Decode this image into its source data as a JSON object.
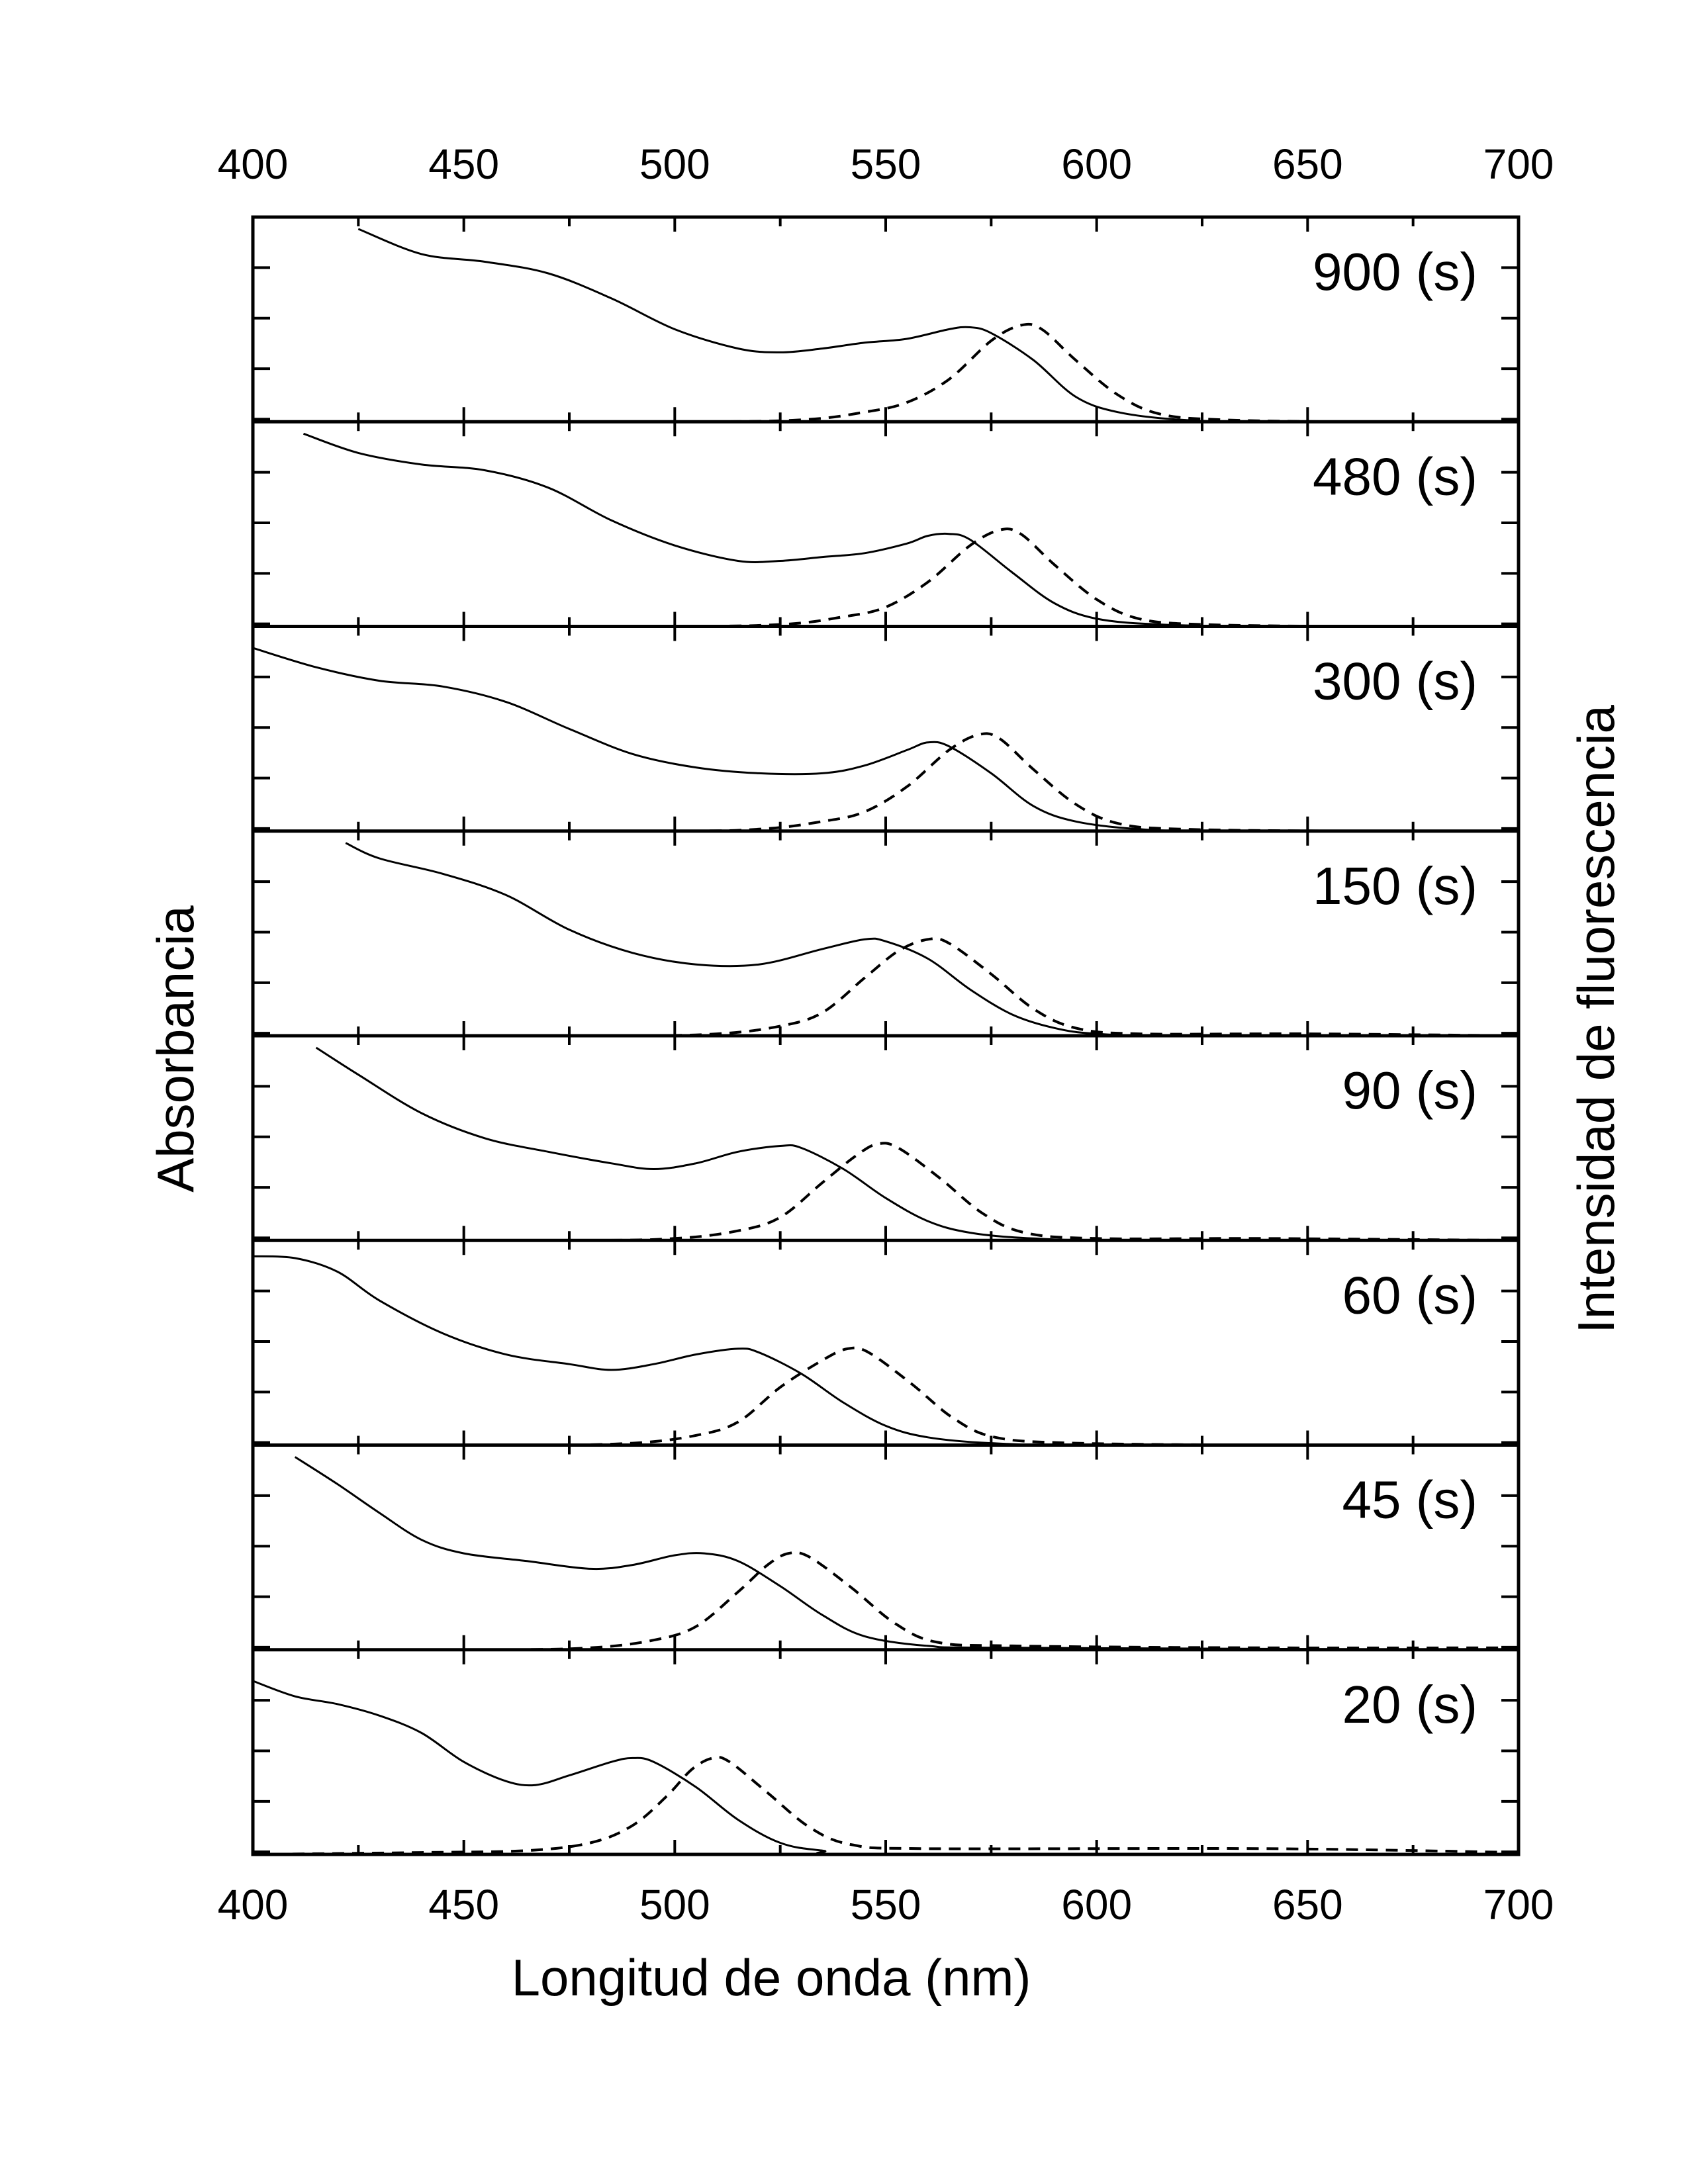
{
  "chart_data": {
    "type": "line",
    "title": "",
    "xlabel": "Longitud de onda (nm)",
    "ylabel_left": "Absorbancia",
    "ylabel_right": "Intensidad de fluorescencia",
    "xlim": [
      400,
      700
    ],
    "x_ticks": [
      "400",
      "450",
      "500",
      "550",
      "600",
      "650",
      "700"
    ],
    "x_tick_values": [
      400,
      450,
      500,
      550,
      600,
      650,
      700
    ],
    "ylim": [
      0,
      1
    ],
    "legend": "none",
    "series_styles": {
      "absorbance": "solid",
      "fluorescence": "dashed"
    },
    "panels": [
      {
        "label": "900 (s)",
        "absorbance": {
          "x": [
            425,
            440,
            455,
            470,
            485,
            500,
            515,
            525,
            535,
            545,
            555,
            565,
            570,
            575,
            585,
            595,
            605,
            620,
            640,
            700
          ],
          "y": [
            1.0,
            0.87,
            0.83,
            0.77,
            0.64,
            0.48,
            0.38,
            0.36,
            0.38,
            0.41,
            0.43,
            0.48,
            0.49,
            0.46,
            0.32,
            0.13,
            0.05,
            0.01,
            0.0,
            0.0
          ]
        },
        "fluorescence": {
          "x": [
            400,
            500,
            530,
            545,
            555,
            565,
            575,
            582,
            587,
            595,
            605,
            615,
            630,
            660,
            700
          ],
          "y": [
            0.0,
            0.0,
            0.01,
            0.05,
            0.1,
            0.22,
            0.42,
            0.5,
            0.48,
            0.32,
            0.14,
            0.04,
            0.01,
            0.0,
            0.0
          ]
        }
      },
      {
        "label": "480 (s)",
        "absorbance": {
          "x": [
            412,
            425,
            440,
            455,
            470,
            485,
            500,
            515,
            525,
            535,
            545,
            555,
            560,
            565,
            570,
            580,
            590,
            600,
            615,
            640,
            700
          ],
          "y": [
            1.0,
            0.9,
            0.84,
            0.81,
            0.72,
            0.55,
            0.42,
            0.34,
            0.34,
            0.36,
            0.38,
            0.43,
            0.47,
            0.48,
            0.45,
            0.28,
            0.12,
            0.04,
            0.01,
            0.0,
            0.0
          ]
        },
        "fluorescence": {
          "x": [
            400,
            495,
            525,
            540,
            550,
            560,
            570,
            577,
            582,
            590,
            600,
            610,
            625,
            660,
            700
          ],
          "y": [
            0.0,
            0.0,
            0.01,
            0.05,
            0.1,
            0.23,
            0.42,
            0.5,
            0.48,
            0.32,
            0.14,
            0.04,
            0.01,
            0.0,
            0.0
          ]
        }
      },
      {
        "label": "300 (s)",
        "absorbance": {
          "x": [
            400,
            415,
            430,
            445,
            460,
            475,
            490,
            505,
            520,
            535,
            545,
            555,
            560,
            565,
            575,
            585,
            595,
            610,
            630,
            700
          ],
          "y": [
            0.95,
            0.85,
            0.78,
            0.75,
            0.67,
            0.53,
            0.4,
            0.33,
            0.3,
            0.3,
            0.34,
            0.42,
            0.46,
            0.44,
            0.3,
            0.13,
            0.05,
            0.01,
            0.0,
            0.0
          ]
        },
        "fluorescence": {
          "x": [
            400,
            495,
            520,
            535,
            545,
            555,
            565,
            572,
            577,
            585,
            595,
            605,
            620,
            660,
            700
          ],
          "y": [
            0.0,
            0.0,
            0.01,
            0.05,
            0.1,
            0.23,
            0.42,
            0.5,
            0.48,
            0.32,
            0.14,
            0.04,
            0.01,
            0.0,
            0.0
          ]
        }
      },
      {
        "label": "150 (s)",
        "absorbance": {
          "x": [
            422,
            430,
            445,
            460,
            475,
            490,
            505,
            520,
            535,
            545,
            550,
            560,
            570,
            580,
            590,
            600,
            620,
            700
          ],
          "y": [
            1.0,
            0.92,
            0.84,
            0.73,
            0.55,
            0.43,
            0.37,
            0.37,
            0.45,
            0.5,
            0.49,
            0.4,
            0.24,
            0.11,
            0.04,
            0.01,
            0.0,
            0.0
          ]
        },
        "fluorescence": {
          "x": [
            400,
            485,
            510,
            525,
            535,
            545,
            553,
            560,
            565,
            575,
            585,
            595,
            610,
            650,
            700
          ],
          "y": [
            0.0,
            0.0,
            0.01,
            0.05,
            0.12,
            0.3,
            0.44,
            0.5,
            0.48,
            0.32,
            0.14,
            0.04,
            0.01,
            0.01,
            0.0
          ]
        }
      },
      {
        "label": "90 (s)",
        "absorbance": {
          "x": [
            415,
            425,
            440,
            455,
            470,
            485,
            495,
            505,
            515,
            525,
            530,
            540,
            550,
            560,
            570,
            585,
            610,
            700
          ],
          "y": [
            1.0,
            0.86,
            0.66,
            0.53,
            0.46,
            0.4,
            0.37,
            0.4,
            0.46,
            0.49,
            0.48,
            0.37,
            0.22,
            0.1,
            0.04,
            0.01,
            0.0,
            0.0
          ]
        },
        "fluorescence": {
          "x": [
            400,
            475,
            500,
            515,
            525,
            535,
            543,
            548,
            553,
            563,
            573,
            583,
            600,
            640,
            700
          ],
          "y": [
            0.0,
            0.0,
            0.01,
            0.05,
            0.12,
            0.3,
            0.44,
            0.5,
            0.48,
            0.32,
            0.14,
            0.04,
            0.01,
            0.01,
            0.0
          ]
        }
      },
      {
        "label": "60 (s)",
        "absorbance": {
          "x": [
            400,
            410,
            420,
            430,
            445,
            460,
            475,
            485,
            495,
            505,
            515,
            520,
            530,
            540,
            550,
            560,
            575,
            600,
            700
          ],
          "y": [
            0.98,
            0.97,
            0.9,
            0.75,
            0.58,
            0.47,
            0.42,
            0.39,
            0.42,
            0.47,
            0.5,
            0.48,
            0.37,
            0.22,
            0.1,
            0.04,
            0.01,
            0.0,
            0.0
          ]
        },
        "fluorescence": {
          "x": [
            400,
            465,
            490,
            505,
            515,
            525,
            535,
            541,
            546,
            556,
            566,
            576,
            595,
            640,
            700
          ],
          "y": [
            0.0,
            0.0,
            0.01,
            0.05,
            0.12,
            0.3,
            0.44,
            0.5,
            0.48,
            0.32,
            0.14,
            0.04,
            0.01,
            0.0,
            0.0
          ]
        }
      },
      {
        "label": "45 (s)",
        "absorbance": {
          "x": [
            410,
            420,
            430,
            440,
            450,
            465,
            480,
            490,
            500,
            507,
            515,
            525,
            535,
            545,
            560,
            580,
            700
          ],
          "y": [
            1.0,
            0.86,
            0.71,
            0.57,
            0.5,
            0.46,
            0.42,
            0.44,
            0.49,
            0.5,
            0.46,
            0.33,
            0.18,
            0.07,
            0.02,
            0.01,
            0.0
          ]
        },
        "fluorescence": {
          "x": [
            400,
            455,
            480,
            495,
            505,
            515,
            522,
            527,
            532,
            542,
            552,
            562,
            580,
            640,
            700
          ],
          "y": [
            0.0,
            0.0,
            0.01,
            0.05,
            0.12,
            0.3,
            0.44,
            0.5,
            0.48,
            0.32,
            0.14,
            0.04,
            0.02,
            0.01,
            0.01
          ]
        }
      },
      {
        "label": "20 (s)",
        "absorbance": {
          "x": [
            400,
            410,
            420,
            430,
            440,
            450,
            460,
            467,
            475,
            485,
            490,
            495,
            505,
            515,
            525,
            535,
            550,
            700
          ],
          "y": [
            0.9,
            0.82,
            0.78,
            0.72,
            0.63,
            0.48,
            0.38,
            0.36,
            0.41,
            0.48,
            0.5,
            0.48,
            0.35,
            0.18,
            0.06,
            0.02,
            0.0,
            0.0
          ]
        },
        "fluorescence": {
          "x": [
            400,
            440,
            465,
            480,
            490,
            498,
            504,
            509,
            513,
            522,
            532,
            542,
            560,
            640,
            700
          ],
          "y": [
            0.0,
            0.01,
            0.02,
            0.06,
            0.15,
            0.3,
            0.44,
            0.5,
            0.48,
            0.32,
            0.14,
            0.05,
            0.03,
            0.03,
            0.01
          ]
        }
      }
    ]
  }
}
